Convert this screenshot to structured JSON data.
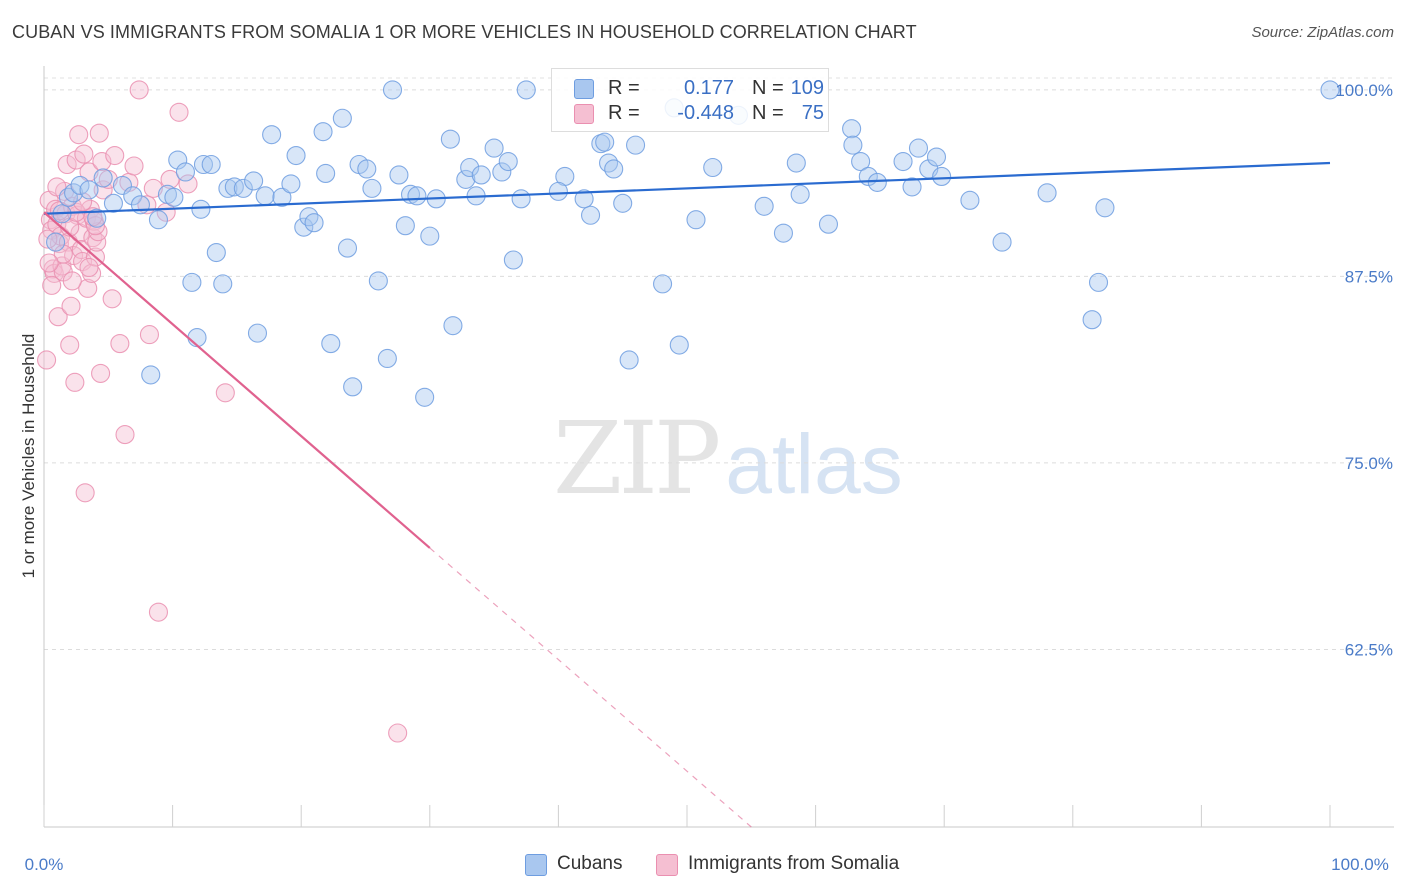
{
  "title": "CUBAN VS IMMIGRANTS FROM SOMALIA 1 OR MORE VEHICLES IN HOUSEHOLD CORRELATION CHART",
  "source": "Source: ZipAtlas.com",
  "watermark": {
    "zip": "ZIP",
    "atlas": "atlas"
  },
  "colors": {
    "blue": "#6e9de0",
    "blue_fill": "#a9c7ef",
    "blue_line": "#2a6bd0",
    "pink": "#ea8fb0",
    "pink_fill": "#f5bfd2",
    "pink_line": "#e0628f",
    "tick_text": "#4a7bc8"
  },
  "legend_top": {
    "rows": [
      {
        "r_label": "R =",
        "r_value": "0.177",
        "n_label": "N =",
        "n_value": "109"
      },
      {
        "r_label": "R =",
        "r_value": "-0.448",
        "n_label": "N =",
        "n_value": "75"
      }
    ]
  },
  "legend_bottom": {
    "series": [
      "Cubans",
      "Immigrants from Somalia"
    ]
  },
  "chart_data": {
    "type": "scatter",
    "title": "CUBAN VS IMMIGRANTS FROM SOMALIA 1 OR MORE VEHICLES IN HOUSEHOLD CORRELATION CHART",
    "xlabel": "",
    "ylabel": "1 or more Vehicles in Household",
    "x_tick_labels": [
      "0.0%",
      "100.0%"
    ],
    "y_tick_labels": [
      "100.0%",
      "87.5%",
      "75.0%",
      "62.5%"
    ],
    "y_ticks": [
      100.0,
      87.5,
      75.0,
      62.5
    ],
    "xlim": [
      0,
      100
    ],
    "ylim": [
      50.6,
      101.2
    ],
    "grid": true,
    "legend_position": "bottom",
    "series": [
      {
        "name": "Cubans",
        "r": 0.177,
        "n": 109,
        "trend": {
          "x": [
            0,
            100
          ],
          "y": [
            91.7,
            95.1
          ],
          "style": "solid"
        },
        "points": [
          [
            0.9,
            89.8
          ],
          [
            1.4,
            91.7
          ],
          [
            1.9,
            92.8
          ],
          [
            2.3,
            93.1
          ],
          [
            2.8,
            93.6
          ],
          [
            3.5,
            93.3
          ],
          [
            4.1,
            91.4
          ],
          [
            4.6,
            94.1
          ],
          [
            5.4,
            92.4
          ],
          [
            6.1,
            93.6
          ],
          [
            6.9,
            92.9
          ],
          [
            7.5,
            92.3
          ],
          [
            8.3,
            80.9
          ],
          [
            8.9,
            91.3
          ],
          [
            9.6,
            93.0
          ],
          [
            10.1,
            92.8
          ],
          [
            10.4,
            95.3
          ],
          [
            11.0,
            94.5
          ],
          [
            11.5,
            87.1
          ],
          [
            11.9,
            83.4
          ],
          [
            12.4,
            95.0
          ],
          [
            13.0,
            95.0
          ],
          [
            13.4,
            89.1
          ],
          [
            13.9,
            87.0
          ],
          [
            14.3,
            93.4
          ],
          [
            14.8,
            93.5
          ],
          [
            15.5,
            93.4
          ],
          [
            16.3,
            93.9
          ],
          [
            16.6,
            83.7
          ],
          [
            17.2,
            92.9
          ],
          [
            17.7,
            97.0
          ],
          [
            18.5,
            92.8
          ],
          [
            19.2,
            93.7
          ],
          [
            19.6,
            95.6
          ],
          [
            20.2,
            90.8
          ],
          [
            20.6,
            91.5
          ],
          [
            21.7,
            97.2
          ],
          [
            21.9,
            94.4
          ],
          [
            22.3,
            83.0
          ],
          [
            23.2,
            98.1
          ],
          [
            23.6,
            89.4
          ],
          [
            24.0,
            80.1
          ],
          [
            24.5,
            95.0
          ],
          [
            25.1,
            94.7
          ],
          [
            25.5,
            93.4
          ],
          [
            26.0,
            87.2
          ],
          [
            26.7,
            82.0
          ],
          [
            27.1,
            100.0
          ],
          [
            27.6,
            94.3
          ],
          [
            28.1,
            90.9
          ],
          [
            28.5,
            93.0
          ],
          [
            29.0,
            92.9
          ],
          [
            29.6,
            79.4
          ],
          [
            30.5,
            92.7
          ],
          [
            31.6,
            96.7
          ],
          [
            31.8,
            84.2
          ],
          [
            32.8,
            94.0
          ],
          [
            33.1,
            94.8
          ],
          [
            33.6,
            92.9
          ],
          [
            34.0,
            94.3
          ],
          [
            35.0,
            96.1
          ],
          [
            35.6,
            94.5
          ],
          [
            36.1,
            95.2
          ],
          [
            37.1,
            92.7
          ],
          [
            37.5,
            100.0
          ],
          [
            40.5,
            94.2
          ],
          [
            42.0,
            92.7
          ],
          [
            42.5,
            91.6
          ],
          [
            43.3,
            96.4
          ],
          [
            43.6,
            96.5
          ],
          [
            43.9,
            95.1
          ],
          [
            44.3,
            94.7
          ],
          [
            45.0,
            92.4
          ],
          [
            45.5,
            81.9
          ],
          [
            46.0,
            96.3
          ],
          [
            48.1,
            87.0
          ],
          [
            49.0,
            98.8
          ],
          [
            49.4,
            82.9
          ],
          [
            50.7,
            91.3
          ],
          [
            52.0,
            94.8
          ],
          [
            54.0,
            98.3
          ],
          [
            58.5,
            95.1
          ],
          [
            58.8,
            93.0
          ],
          [
            61.0,
            91.0
          ],
          [
            62.8,
            97.4
          ],
          [
            62.9,
            96.3
          ],
          [
            63.5,
            95.2
          ],
          [
            64.1,
            94.2
          ],
          [
            64.8,
            93.8
          ],
          [
            66.8,
            95.2
          ],
          [
            67.5,
            93.5
          ],
          [
            68.0,
            96.1
          ],
          [
            68.8,
            94.7
          ],
          [
            69.4,
            95.5
          ],
          [
            69.8,
            94.2
          ],
          [
            74.5,
            89.8
          ],
          [
            81.5,
            84.6
          ],
          [
            82.0,
            87.1
          ],
          [
            82.5,
            92.1
          ],
          [
            100.0,
            100.0
          ],
          [
            30.0,
            90.2
          ],
          [
            36.5,
            88.6
          ],
          [
            12.2,
            92.0
          ],
          [
            21.0,
            91.1
          ],
          [
            40.0,
            93.2
          ],
          [
            56.0,
            92.2
          ],
          [
            72.0,
            92.6
          ],
          [
            78.0,
            93.1
          ],
          [
            57.5,
            90.4
          ]
        ]
      },
      {
        "name": "Immigrants from Somalia",
        "r": -0.448,
        "n": 75,
        "trend": {
          "x": [
            0,
            30
          ],
          "y": [
            91.8,
            69.3
          ],
          "style": "solid",
          "extension": {
            "x": [
              30,
              55
            ],
            "y": [
              69.3,
              50.6
            ],
            "style": "dashed"
          }
        },
        "points": [
          [
            0.2,
            81.9
          ],
          [
            0.4,
            92.6
          ],
          [
            0.5,
            91.3
          ],
          [
            0.6,
            90.6
          ],
          [
            0.7,
            88.0
          ],
          [
            0.8,
            87.7
          ],
          [
            0.9,
            92.0
          ],
          [
            1.0,
            91.0
          ],
          [
            1.1,
            84.8
          ],
          [
            1.2,
            89.7
          ],
          [
            1.3,
            90.2
          ],
          [
            1.4,
            88.2
          ],
          [
            1.5,
            87.8
          ],
          [
            1.6,
            93.2
          ],
          [
            1.7,
            91.7
          ],
          [
            1.8,
            95.0
          ],
          [
            1.9,
            89.8
          ],
          [
            2.0,
            82.9
          ],
          [
            2.1,
            85.5
          ],
          [
            2.2,
            92.2
          ],
          [
            2.3,
            88.9
          ],
          [
            2.4,
            80.4
          ],
          [
            2.5,
            95.3
          ],
          [
            2.6,
            91.6
          ],
          [
            2.7,
            97.0
          ],
          [
            2.8,
            90.4
          ],
          [
            2.9,
            89.3
          ],
          [
            3.0,
            88.5
          ],
          [
            3.1,
            95.7
          ],
          [
            3.2,
            73.0
          ],
          [
            3.3,
            91.4
          ],
          [
            3.4,
            86.7
          ],
          [
            3.5,
            94.5
          ],
          [
            3.6,
            92.0
          ],
          [
            3.7,
            87.7
          ],
          [
            3.8,
            90.1
          ],
          [
            3.9,
            91.2
          ],
          [
            4.0,
            88.8
          ],
          [
            4.1,
            89.8
          ],
          [
            4.2,
            90.5
          ],
          [
            4.3,
            97.1
          ],
          [
            4.4,
            81.0
          ],
          [
            4.5,
            95.2
          ],
          [
            4.6,
            93.3
          ],
          [
            5.0,
            94.0
          ],
          [
            5.3,
            86.0
          ],
          [
            5.5,
            95.6
          ],
          [
            5.9,
            83.0
          ],
          [
            6.3,
            76.9
          ],
          [
            6.6,
            93.8
          ],
          [
            7.0,
            94.9
          ],
          [
            7.4,
            100.0
          ],
          [
            8.0,
            92.3
          ],
          [
            8.2,
            83.6
          ],
          [
            8.5,
            93.4
          ],
          [
            8.9,
            65.0
          ],
          [
            9.5,
            91.8
          ],
          [
            9.8,
            94.0
          ],
          [
            10.5,
            98.5
          ],
          [
            11.2,
            93.7
          ],
          [
            14.1,
            79.7
          ],
          [
            27.5,
            56.9
          ],
          [
            0.3,
            90.0
          ],
          [
            0.6,
            86.9
          ],
          [
            1.0,
            93.5
          ],
          [
            1.5,
            89.0
          ],
          [
            2.0,
            90.8
          ],
          [
            2.5,
            91.8
          ],
          [
            3.0,
            92.5
          ],
          [
            3.5,
            88.1
          ],
          [
            4.0,
            90.9
          ],
          [
            0.4,
            88.4
          ],
          [
            1.2,
            91.9
          ],
          [
            2.2,
            87.2
          ],
          [
            3.8,
            91.5
          ]
        ]
      }
    ]
  }
}
